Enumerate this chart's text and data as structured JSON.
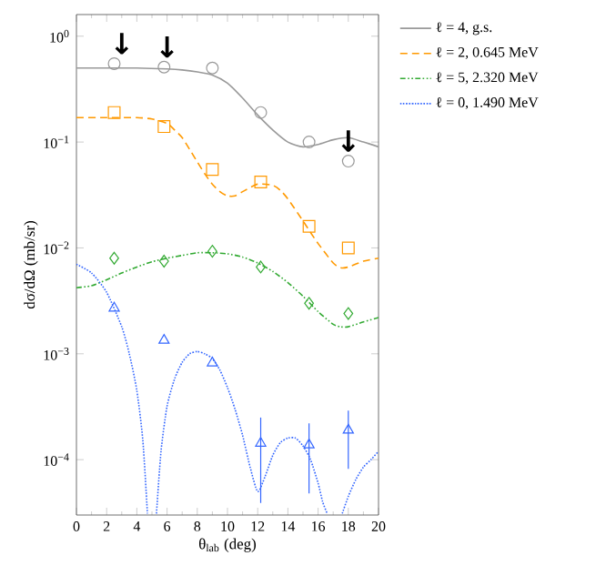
{
  "chart_data": {
    "type": "line",
    "xlabel": "θ$_{lab}$ (deg)",
    "ylabel": "dσ/dΩ (mb/sr)",
    "log": "y",
    "legend": "right",
    "grid": false,
    "xlim": [
      0,
      20
    ],
    "xticks": [
      0,
      2,
      4,
      6,
      8,
      10,
      12,
      14,
      16,
      18,
      20
    ],
    "ylim": [
      3e-05,
      1.6
    ],
    "yticks": [
      {
        "value": 1,
        "label": "10$^{0}$"
      },
      {
        "value": 0.1,
        "label": "10$^{−1}$"
      },
      {
        "value": 0.01,
        "label": "10$^{−2}$"
      },
      {
        "value": 0.001,
        "label": "10$^{−3}$"
      },
      {
        "value": 0.0001,
        "label": "10$^{−4}$"
      }
    ],
    "series": [
      {
        "name": "ℓ = 4, g.s.",
        "color": "#999999",
        "line_style": "solid",
        "marker": "none",
        "x": [
          0,
          2,
          4,
          6,
          7,
          8,
          9,
          10,
          11,
          12,
          13,
          14,
          15,
          16,
          17,
          18,
          19,
          20
        ],
        "values": [
          0.5,
          0.5,
          0.5,
          0.49,
          0.48,
          0.46,
          0.43,
          0.36,
          0.26,
          0.18,
          0.13,
          0.1,
          0.09,
          0.095,
          0.105,
          0.11,
          0.1,
          0.09
        ]
      },
      {
        "name": "ℓ = 2, 0.645 MeV",
        "color": "#ff9900",
        "line_style": "dashed",
        "marker": "none",
        "x": [
          0,
          2,
          4,
          5,
          6,
          6.5,
          7,
          7.5,
          8,
          8.5,
          9,
          9.5,
          10,
          10.5,
          11,
          12,
          13,
          13.5,
          14,
          15,
          15.5,
          16,
          17,
          17.5,
          18,
          19,
          20
        ],
        "values": [
          0.17,
          0.17,
          0.17,
          0.165,
          0.15,
          0.13,
          0.11,
          0.085,
          0.065,
          0.05,
          0.04,
          0.034,
          0.031,
          0.031,
          0.034,
          0.04,
          0.039,
          0.035,
          0.029,
          0.018,
          0.014,
          0.011,
          0.0072,
          0.0065,
          0.0066,
          0.0075,
          0.008
        ]
      },
      {
        "name": "ℓ = 5, 2.320 MeV",
        "color": "#33aa33",
        "line_style": "dashdotted",
        "marker": "none",
        "x": [
          0,
          1,
          2,
          3,
          4,
          5,
          6,
          7,
          8,
          9,
          10,
          11,
          12,
          13,
          14,
          15,
          16,
          17,
          17.5,
          18,
          19,
          20
        ],
        "values": [
          0.0042,
          0.0044,
          0.005,
          0.0058,
          0.0066,
          0.0074,
          0.008,
          0.0085,
          0.009,
          0.009,
          0.0088,
          0.0082,
          0.0072,
          0.006,
          0.0047,
          0.0035,
          0.0025,
          0.0019,
          0.0018,
          0.0018,
          0.002,
          0.0022
        ]
      },
      {
        "name": "ℓ = 0, 1.490 MeV",
        "color": "#3366ff",
        "line_style": "dotted",
        "marker": "none",
        "x": [
          0,
          1,
          2,
          3,
          3.5,
          4,
          4.4,
          4.7,
          5,
          5.3,
          5.6,
          6,
          6.5,
          7,
          7.5,
          8,
          8.5,
          9,
          9.5,
          10,
          10.5,
          11,
          11.5,
          12,
          12.5,
          13,
          13.5,
          14,
          14.5,
          15,
          15.5,
          16,
          16.3,
          16.6,
          17,
          17.6,
          18,
          18.5,
          19,
          19.5,
          20
        ],
        "values": [
          0.007,
          0.0058,
          0.0038,
          0.0018,
          0.001,
          0.00045,
          0.00015,
          3.1e-05,
          null,
          3.1e-05,
          0.00012,
          0.00032,
          0.00058,
          0.00083,
          0.001,
          0.00105,
          0.001,
          0.0009,
          0.0007,
          0.00048,
          0.0003,
          0.00017,
          8.5e-05,
          5e-05,
          7e-05,
          0.00011,
          0.000145,
          0.00016,
          0.00016,
          0.000135,
          0.0001,
          6e-05,
          4e-05,
          3.1e-05,
          null,
          3.1e-05,
          4.5e-05,
          6.5e-05,
          8.5e-05,
          0.0001,
          0.00012
        ]
      },
      {
        "type": "scatter",
        "color": "#999999",
        "marker": "circle",
        "x": [
          2.5,
          5.8,
          9.0,
          12.2,
          15.4,
          18.0
        ],
        "values": [
          0.55,
          0.51,
          0.5,
          0.19,
          0.1,
          0.066
        ]
      },
      {
        "type": "scatter",
        "color": "#ff9900",
        "marker": "square",
        "x": [
          2.5,
          5.8,
          9.0,
          12.2,
          15.4,
          18.0
        ],
        "values": [
          0.19,
          0.14,
          0.055,
          0.042,
          0.016,
          0.01
        ]
      },
      {
        "type": "scatter",
        "color": "#33aa33",
        "marker": "diamond",
        "x": [
          2.5,
          5.8,
          9.0,
          12.2,
          15.4,
          18.0
        ],
        "values": [
          0.008,
          0.0075,
          0.0093,
          0.0066,
          0.003,
          0.0024
        ]
      },
      {
        "type": "scatter",
        "color": "#3366ff",
        "marker": "triangle",
        "x": [
          2.5,
          5.8,
          9.0,
          12.2,
          15.4,
          18.0
        ],
        "values": [
          0.0027,
          0.00134,
          0.00082,
          0.000143,
          0.000138,
          0.00019
        ],
        "errors": [
          null,
          null,
          null,
          [
            3.9e-05,
            0.00025
          ],
          [
            4.8e-05,
            0.00022
          ],
          [
            8.2e-05,
            0.00029
          ]
        ]
      }
    ],
    "annotations": [
      {
        "text": "↓",
        "x": 3.0,
        "y": 0.55
      },
      {
        "text": "↓",
        "x": 6.0,
        "y": 0.51
      },
      {
        "text": "↓",
        "x": 18.0,
        "y": 0.066
      }
    ]
  }
}
